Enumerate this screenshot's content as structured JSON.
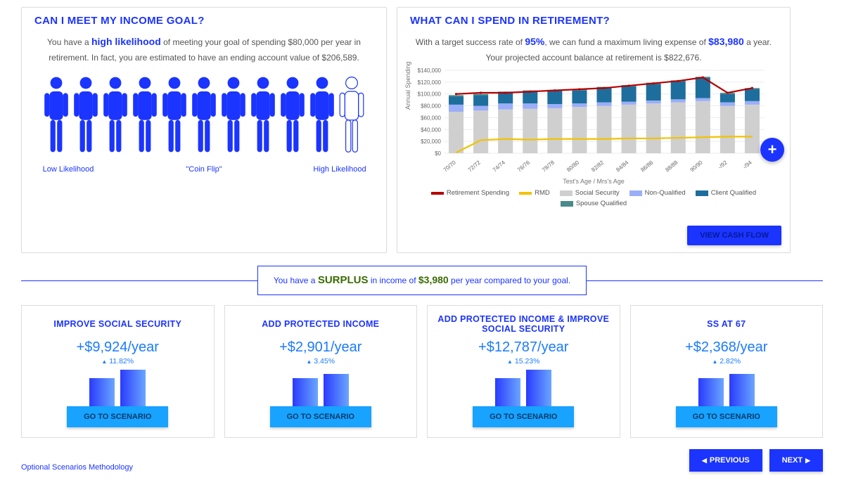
{
  "colors": {
    "brand": "#1b34ff",
    "accent_blue": "#1b7bff",
    "green": "#3a6b00",
    "button_cyan": "#17a3ff",
    "panel_border": "#dddddd"
  },
  "income_goal": {
    "title": "CAN I MEET MY INCOME GOAL?",
    "text_pre": "You have a ",
    "highlight": "high likelihood",
    "text_mid": " of meeting your goal of spending $80,000 per year in retirement. In fact, you are estimated to have an ending account value of $206,589.",
    "people_full": 10,
    "people_ghost": 1,
    "labels": {
      "low": "Low Likelihood",
      "mid": "\"Coin Flip\"",
      "high": "High Likelihood"
    }
  },
  "spend": {
    "title": "WHAT CAN I SPEND IN RETIREMENT?",
    "text_pre": "With a target success rate of ",
    "rate": "95%",
    "text_mid": ", we can fund a maximum living expense of ",
    "amount": "$83,980",
    "text_post": " a year. Your projected account balance at retirement is $822,676.",
    "fab_label": "+",
    "view_button": "VIEW CASH FLOW",
    "chart": {
      "type": "stacked-bar-with-lines",
      "ylabel": "Annual Spending",
      "xlabel": "Test's Age / Mrs's Age",
      "ylim": [
        0,
        140000
      ],
      "ytick_step": 20000,
      "yticks_fmt": [
        "$0",
        "$20,000",
        "$40,000",
        "$60,000",
        "$80,000",
        "$100,000",
        "$120,000",
        "$140,000"
      ],
      "categories": [
        "70/70",
        "72/72",
        "74/74",
        "76/76",
        "78/78",
        "80/80",
        "82/82",
        "84/84",
        "86/86",
        "88/88",
        "90/90",
        "-/92",
        "-/94"
      ],
      "colors": {
        "retirement_spending": "#b50000",
        "rmd": "#f2c200",
        "social_security": "#cfcfcf",
        "non_qualified": "#9aaef9",
        "client_qualified": "#1d6e9c",
        "spouse_qualified": "#4a8a8a",
        "grid": "#e5e5e5",
        "axis_text": "#666666"
      },
      "series": {
        "social_security": [
          70000,
          72000,
          74000,
          75000,
          76000,
          78000,
          80000,
          82000,
          84000,
          86000,
          88000,
          80000,
          82000
        ],
        "non_qualified": [
          12000,
          8000,
          10000,
          9000,
          7000,
          6000,
          6000,
          5000,
          5000,
          5000,
          5000,
          6000,
          6000
        ],
        "client_qualified": [
          14000,
          18000,
          18000,
          20000,
          22000,
          22000,
          24000,
          26000,
          28000,
          30000,
          34000,
          14000,
          20000
        ],
        "spouse_qualified": [
          2000,
          2000,
          2000,
          2000,
          2000,
          2000,
          2000,
          2000,
          2000,
          2000,
          2000,
          2000,
          2000
        ]
      },
      "lines": {
        "retirement_spending": [
          100000,
          102000,
          102000,
          104000,
          106000,
          108000,
          110000,
          114000,
          118000,
          122000,
          128000,
          102000,
          110000
        ],
        "rmd": [
          1000,
          22000,
          24000,
          23000,
          24000,
          24000,
          24000,
          25000,
          25000,
          26000,
          27000,
          28000,
          28000
        ]
      },
      "legend": [
        {
          "label": "Retirement Spending",
          "swatch": "line",
          "color": "#b50000"
        },
        {
          "label": "RMD",
          "swatch": "line",
          "color": "#f2c200"
        },
        {
          "label": "Social Security",
          "swatch": "box",
          "color": "#cfcfcf"
        },
        {
          "label": "Non-Qualified",
          "swatch": "box",
          "color": "#9aaef9"
        },
        {
          "label": "Client Qualified",
          "swatch": "box",
          "color": "#1d6e9c"
        },
        {
          "label": "Spouse Qualified",
          "swatch": "box",
          "color": "#4a8a8a"
        }
      ]
    }
  },
  "surplus": {
    "pre": "You have a ",
    "word": "SURPLUS",
    "mid": " in income of ",
    "amount": "$3,980",
    "post": " per year compared to your goal."
  },
  "scenarios": [
    {
      "title": "IMPROVE SOCIAL SECURITY",
      "gain": "+$9,924/year",
      "pct": "11.82%",
      "bar1": 40,
      "bar2": 52,
      "button": "GO TO SCENARIO"
    },
    {
      "title": "ADD PROTECTED INCOME",
      "gain": "+$2,901/year",
      "pct": "3.45%",
      "bar1": 40,
      "bar2": 46,
      "button": "GO TO SCENARIO"
    },
    {
      "title": "ADD PROTECTED INCOME & IMPROVE SOCIAL SECURITY",
      "gain": "+$12,787/year",
      "pct": "15.23%",
      "bar1": 40,
      "bar2": 52,
      "button": "GO TO SCENARIO"
    },
    {
      "title": "SS AT 67",
      "gain": "+$2,368/year",
      "pct": "2.82%",
      "bar1": 40,
      "bar2": 46,
      "button": "GO TO SCENARIO"
    }
  ],
  "footer": {
    "methodology": "Optional Scenarios Methodology",
    "prev": "PREVIOUS",
    "next": "NEXT"
  }
}
